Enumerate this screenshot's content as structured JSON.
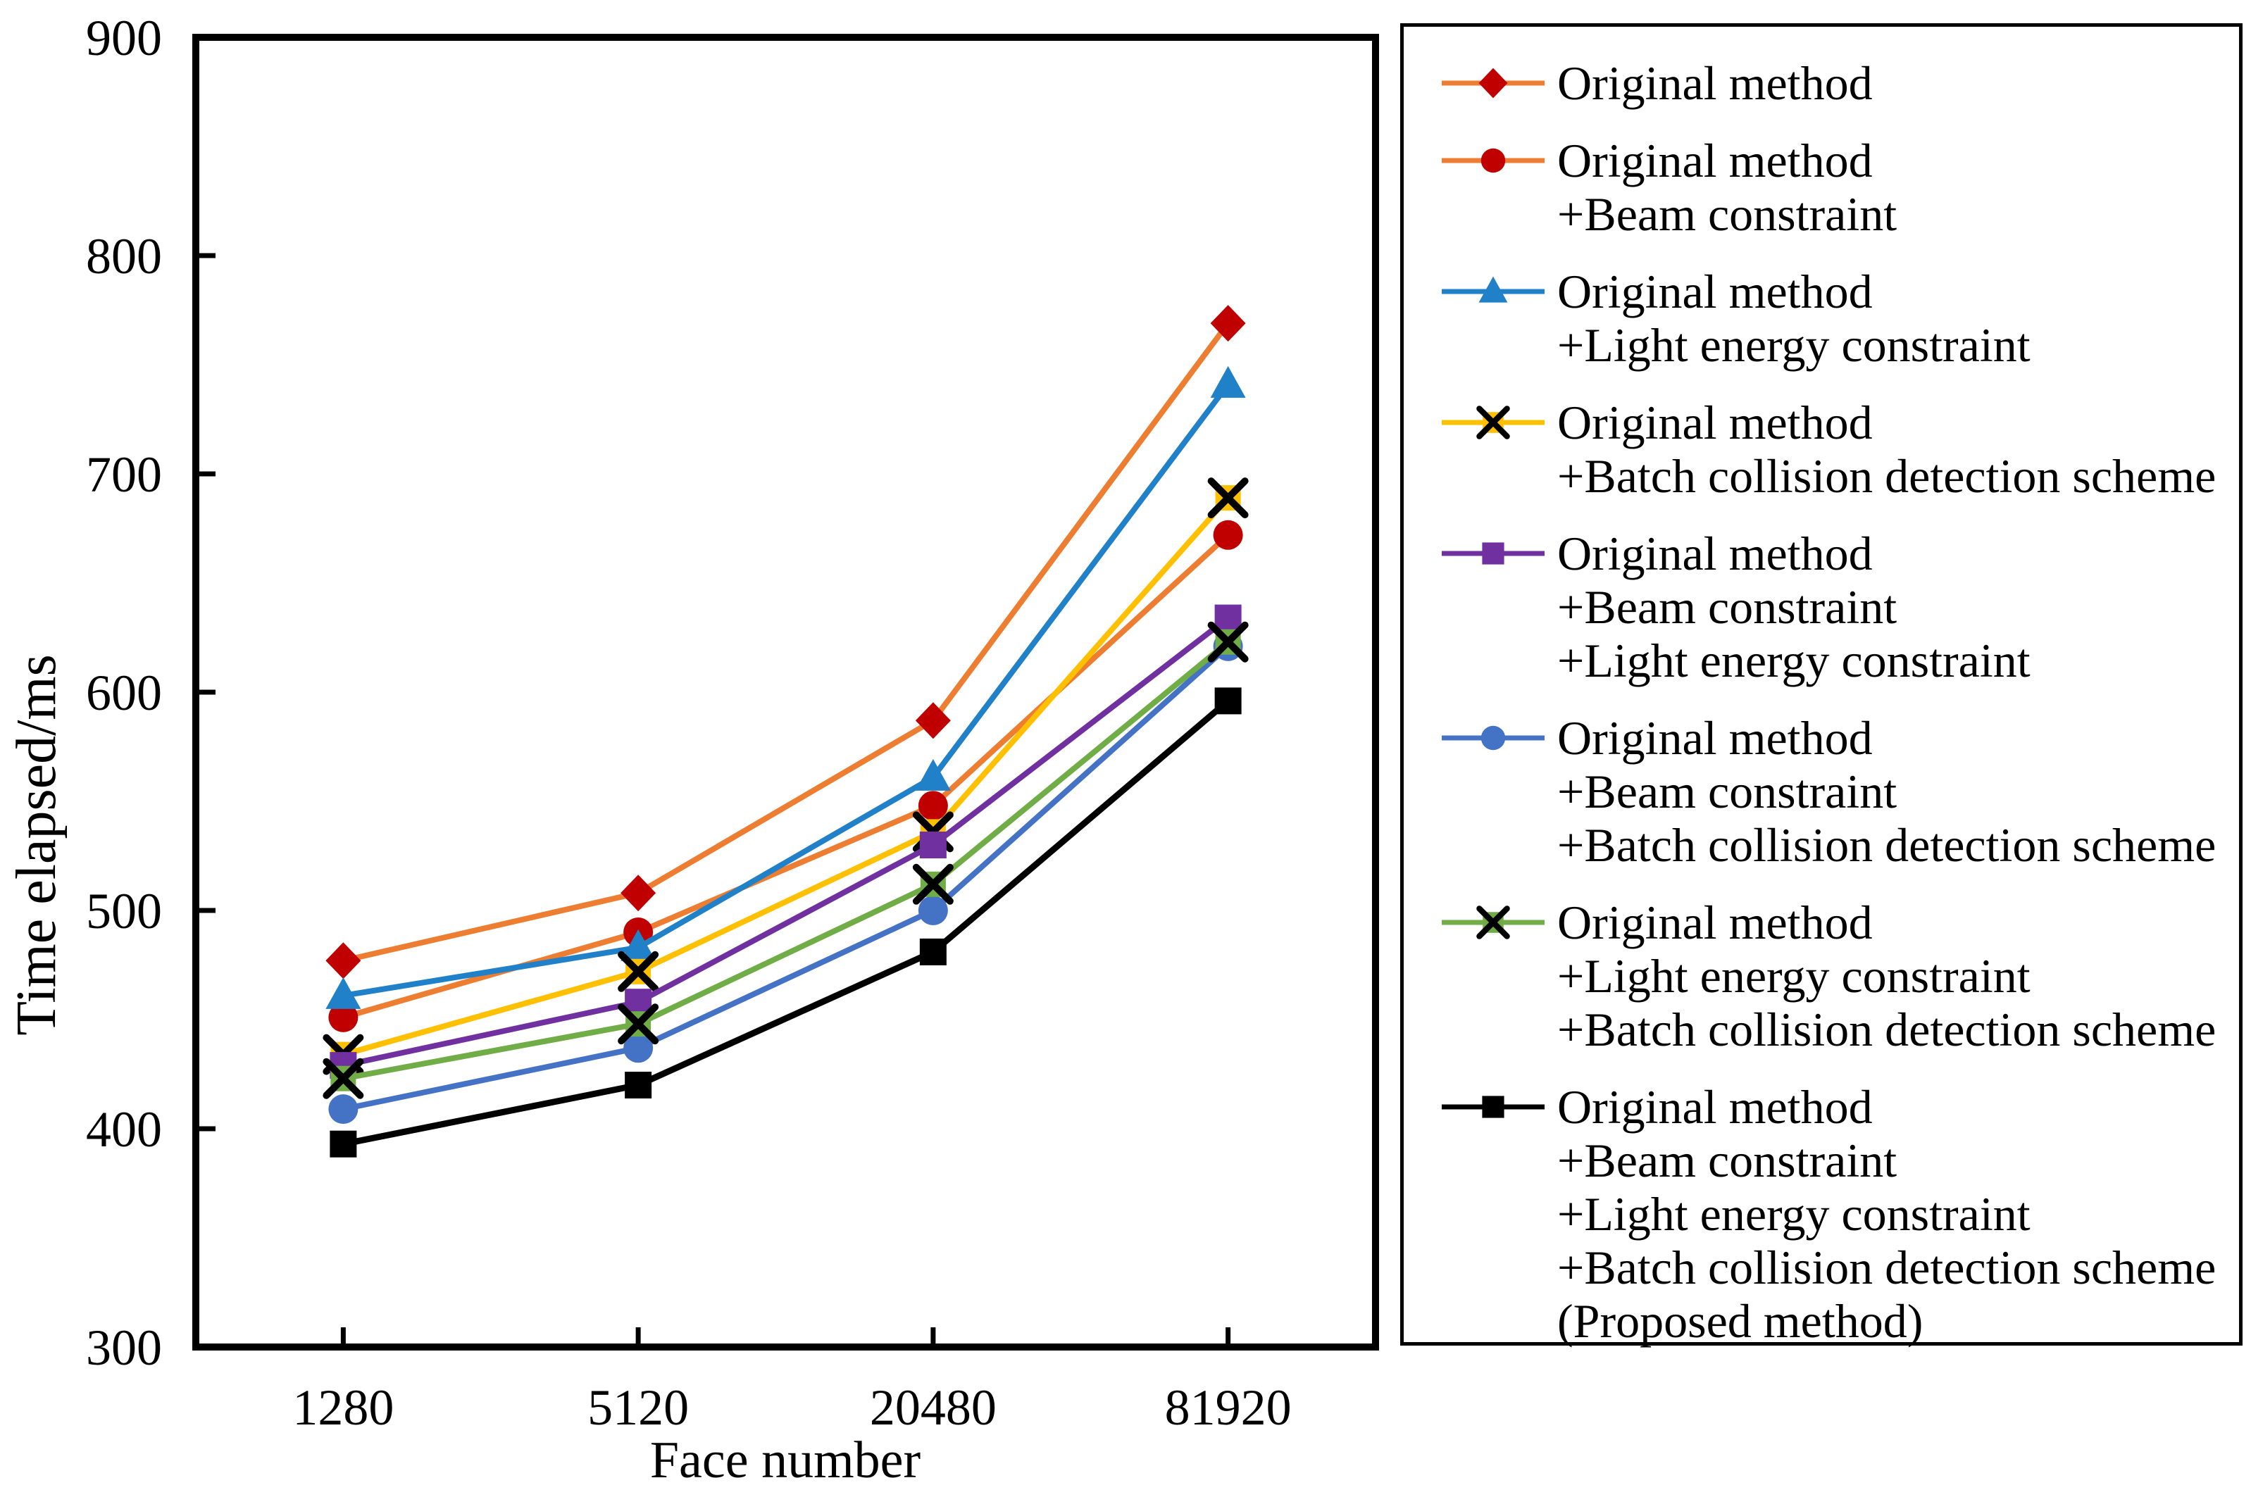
{
  "chart_data": {
    "type": "line",
    "title": "",
    "xlabel": "Face number",
    "ylabel": "Time elapsed/ms",
    "x_axis_type": "categorical",
    "categories": [
      "1280",
      "5120",
      "20480",
      "81920"
    ],
    "ylim": [
      300,
      900
    ],
    "yticks": [
      300,
      400,
      500,
      600,
      700,
      800,
      900
    ],
    "grid": false,
    "legend_position": "right",
    "frame_color": "#000000",
    "background_color": "#ffffff",
    "series": [
      {
        "name": "Original method",
        "label_lines": [
          "Original method"
        ],
        "marker": "diamond",
        "marker_color": "#C00000",
        "line_color": "#ED7D31",
        "values": [
          477,
          508,
          587,
          769
        ]
      },
      {
        "name": "Original method +Beam constraint",
        "label_lines": [
          "Original method",
          "+Beam constraint"
        ],
        "marker": "circle",
        "marker_color": "#C00000",
        "line_color": "#ED7D31",
        "values": [
          451,
          490,
          548,
          672
        ]
      },
      {
        "name": "Original method +Light energy constraint",
        "label_lines": [
          "Original method",
          "+Light energy constraint"
        ],
        "marker": "triangle",
        "marker_color": "#2080C8",
        "line_color": "#2080C8",
        "values": [
          461,
          483,
          561,
          741
        ]
      },
      {
        "name": "Original method +Batch collision detection scheme",
        "label_lines": [
          "Original method",
          "+Batch collision detection scheme"
        ],
        "marker": "x-square",
        "marker_color": "#FFC000",
        "line_color": "#FFC000",
        "values": [
          434,
          472,
          536,
          689
        ]
      },
      {
        "name": "Original method +Beam constraint +Light energy constraint",
        "label_lines": [
          "Original method",
          "+Beam constraint",
          "+Light energy constraint"
        ],
        "marker": "square",
        "marker_color": "#7030A0",
        "line_color": "#7030A0",
        "values": [
          429,
          458,
          530,
          634
        ]
      },
      {
        "name": "Original method +Beam constraint +Batch collision detection scheme",
        "label_lines": [
          "Original method",
          "+Beam constraint",
          "+Batch collision detection scheme"
        ],
        "marker": "circle",
        "marker_color": "#4472C4",
        "line_color": "#4472C4",
        "values": [
          409,
          437,
          500,
          621
        ]
      },
      {
        "name": "Original method +Light energy constraint +Batch collision detection scheme",
        "label_lines": [
          "Original method",
          "+Light energy constraint",
          "+Batch collision detection scheme"
        ],
        "marker": "x-square",
        "marker_color": "#70AD47",
        "line_color": "#70AD47",
        "values": [
          423,
          448,
          512,
          623
        ]
      },
      {
        "name": "Original method +Beam constraint +Light energy constraint +Batch collision detection scheme (Proposed method)",
        "label_lines": [
          "Original method",
          "+Beam constraint",
          "+Light energy constraint",
          "+Batch collision detection scheme",
          "(Proposed method)"
        ],
        "marker": "square",
        "marker_color": "#000000",
        "line_color": "#000000",
        "values": [
          393,
          420,
          481,
          596
        ]
      }
    ]
  }
}
